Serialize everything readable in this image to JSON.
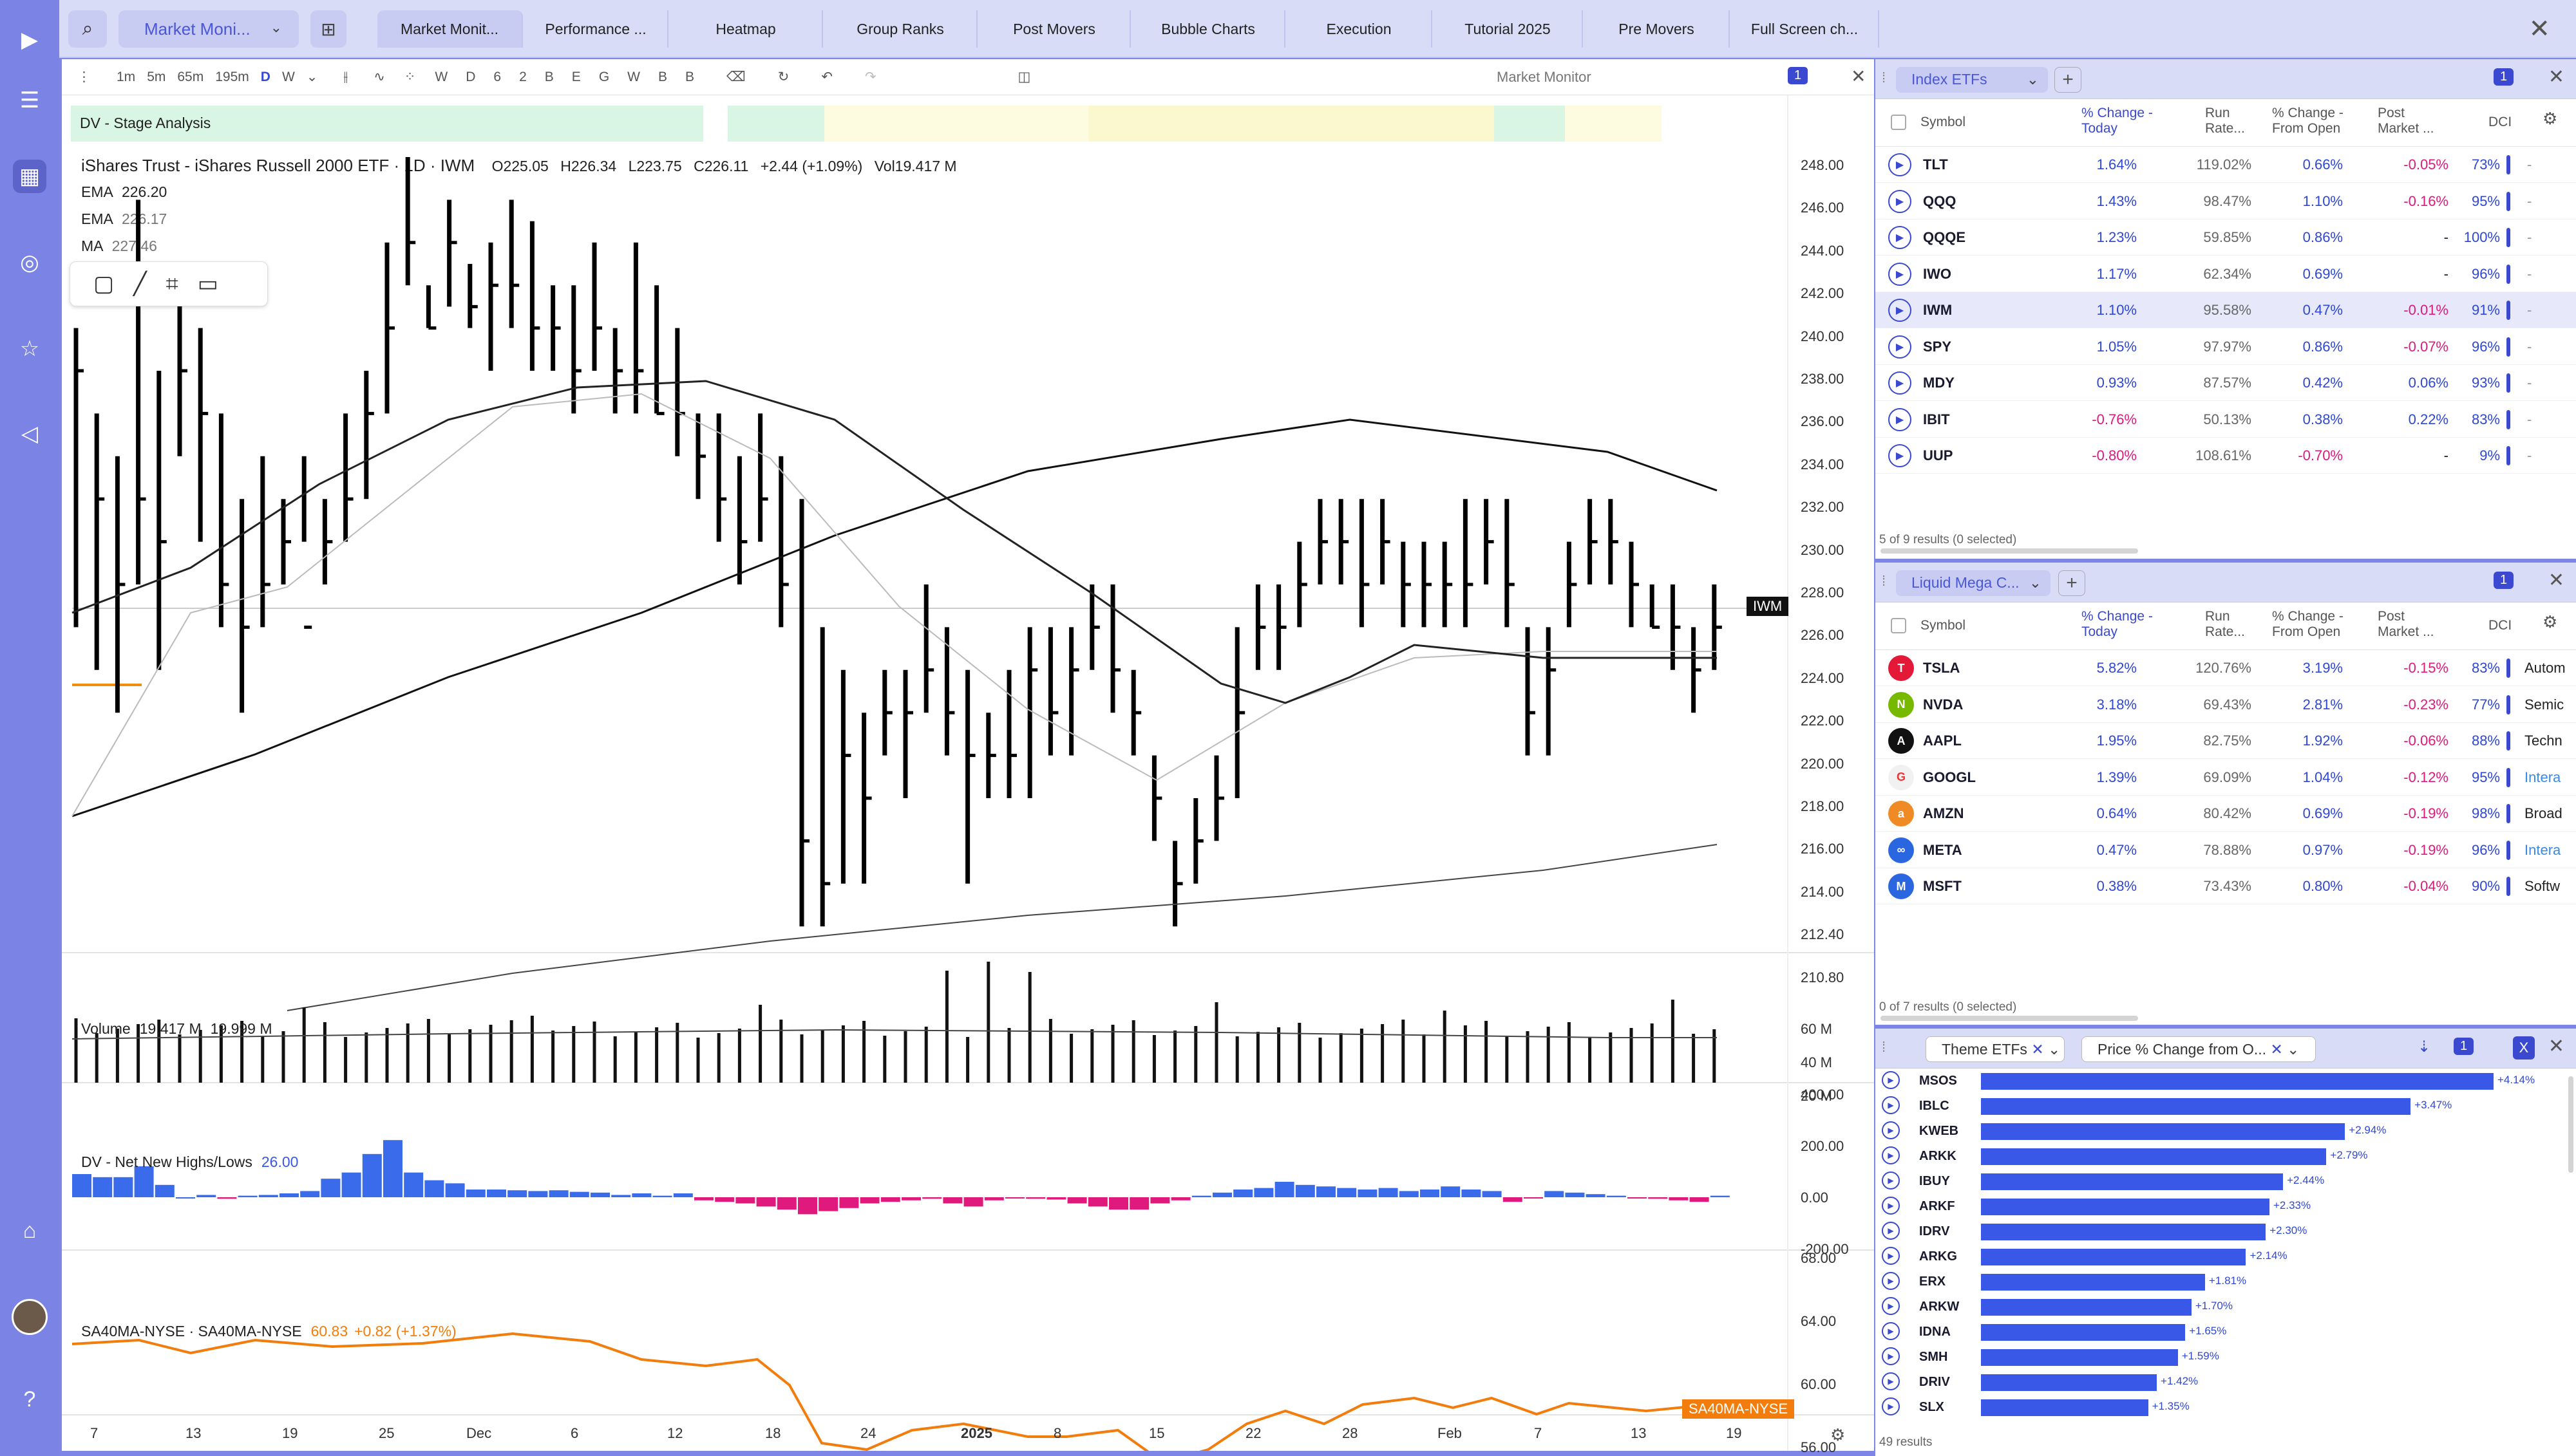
{
  "sidebar": {
    "icons": [
      "logo-play-icon",
      "menu-icon",
      "dashboard-icon",
      "radar-icon",
      "star-icon",
      "megaphone-icon",
      "graduation-cap-icon",
      "help-icon"
    ]
  },
  "topbar": {
    "workspace": "Market Moni...",
    "tabs": [
      "Market Monit...",
      "Performance ...",
      "Heatmap",
      "Group Ranks",
      "Post Movers",
      "Bubble Charts",
      "Execution",
      "Tutorial 2025",
      "Pre Movers",
      "Full Screen ch..."
    ]
  },
  "chart": {
    "toolbar": {
      "intervals": [
        "1m",
        "5m",
        "65m",
        "195m",
        "D",
        "W"
      ],
      "letters": [
        "W",
        "D",
        "6",
        "2",
        "B",
        "E",
        "G",
        "W",
        "B",
        "B"
      ],
      "layout_name": "Market Monitor",
      "badge": "1"
    },
    "stage_label": "DV - Stage Analysis",
    "title": "iShares Trust - iShares Russell 2000 ETF · 1D · IWM",
    "ohlc": {
      "O": "O225.05",
      "H": "H226.34",
      "L": "L223.75",
      "C": "C226.11",
      "chg": "+2.44 (+1.09%)",
      "vol": "Vol19.417 M"
    },
    "indicators": [
      {
        "name": "EMA",
        "value": "226.20"
      },
      {
        "name": "EMA",
        "value": "226.17"
      },
      {
        "name": "MA",
        "value": "227.46"
      }
    ],
    "price_ticks": [
      "248.00",
      "246.00",
      "244.00",
      "242.00",
      "240.00",
      "238.00",
      "236.00",
      "234.00",
      "232.00",
      "230.00",
      "228.00",
      "226.00",
      "224.00",
      "222.00",
      "220.00",
      "218.00",
      "216.00",
      "214.00",
      "212.40",
      "210.80"
    ],
    "price_tag": "IWM",
    "volume": {
      "label": "Volume",
      "v1": "19.417 M",
      "v2": "19.999 M",
      "ticks": [
        "60 M",
        "40 M",
        "20 M"
      ]
    },
    "nnh": {
      "label": "DV - Net New Highs/Lows",
      "value": "26.00",
      "ticks": [
        "400.00",
        "200.00",
        "0.00",
        "-200.00"
      ]
    },
    "sa40": {
      "label": "SA40MA-NYSE · SA40MA-NYSE",
      "value": "60.83",
      "chg": "+0.82 (+1.37%)",
      "ticks": [
        "68.00",
        "64.00",
        "60.00",
        "56.00"
      ],
      "tag": "SA40MA-NYSE"
    },
    "x_ticks": [
      "7",
      "13",
      "19",
      "25",
      "Dec",
      "6",
      "12",
      "18",
      "24",
      "2025",
      "8",
      "15",
      "22",
      "28",
      "Feb",
      "7",
      "13",
      "19"
    ]
  },
  "index_etfs": {
    "title": "Index ETFs",
    "columns": [
      "Symbol",
      "% Change - Today",
      "Run Rate...",
      "% Change - From Open",
      "Post Market ...",
      "DCI"
    ],
    "rows": [
      {
        "sym": "TLT",
        "chg": "1.64%",
        "run": "119.02%",
        "open": "0.66%",
        "post": "-0.05%",
        "dci": "73%",
        "pn": "neg"
      },
      {
        "sym": "QQQ",
        "chg": "1.43%",
        "run": "98.47%",
        "open": "1.10%",
        "post": "-0.16%",
        "dci": "95%",
        "pn": "neg"
      },
      {
        "sym": "QQQE",
        "chg": "1.23%",
        "run": "59.85%",
        "open": "0.86%",
        "post": "-",
        "dci": "100%",
        "pn": "none"
      },
      {
        "sym": "IWO",
        "chg": "1.17%",
        "run": "62.34%",
        "open": "0.69%",
        "post": "-",
        "dci": "96%",
        "pn": "none"
      },
      {
        "sym": "IWM",
        "chg": "1.10%",
        "run": "95.58%",
        "open": "0.47%",
        "post": "-0.01%",
        "dci": "91%",
        "pn": "neg"
      },
      {
        "sym": "SPY",
        "chg": "1.05%",
        "run": "97.97%",
        "open": "0.86%",
        "post": "-0.07%",
        "dci": "96%",
        "pn": "neg"
      },
      {
        "sym": "MDY",
        "chg": "0.93%",
        "run": "87.57%",
        "open": "0.42%",
        "post": "0.06%",
        "dci": "93%",
        "pn": "pos"
      },
      {
        "sym": "IBIT",
        "chg": "-0.76%",
        "run": "50.13%",
        "open": "0.38%",
        "post": "0.22%",
        "dci": "83%",
        "pn": "pos"
      },
      {
        "sym": "UUP",
        "chg": "-0.80%",
        "run": "108.61%",
        "open": "-0.70%",
        "post": "-",
        "dci": "9%",
        "pn": "none"
      }
    ],
    "footer": "5 of 9 results (0 selected)"
  },
  "mega_caps": {
    "title": "Liquid Mega C...",
    "rows": [
      {
        "sym": "TSLA",
        "chg": "5.82%",
        "run": "120.76%",
        "open": "3.19%",
        "post": "-0.15%",
        "dci": "83%",
        "sector": "Autom",
        "logo": "T",
        "color": "#e31937"
      },
      {
        "sym": "NVDA",
        "chg": "3.18%",
        "run": "69.43%",
        "open": "2.81%",
        "post": "-0.23%",
        "dci": "77%",
        "sector": "Semic",
        "logo": "N",
        "color": "#76b900"
      },
      {
        "sym": "AAPL",
        "chg": "1.95%",
        "run": "82.75%",
        "open": "1.92%",
        "post": "-0.06%",
        "dci": "88%",
        "sector": "Techn",
        "logo": "A",
        "color": "#111111"
      },
      {
        "sym": "GOOGL",
        "chg": "1.39%",
        "run": "69.09%",
        "open": "1.04%",
        "post": "-0.12%",
        "dci": "95%",
        "sector": "Intera",
        "logo": "G",
        "color": "#f1f1f1"
      },
      {
        "sym": "AMZN",
        "chg": "0.64%",
        "run": "80.42%",
        "open": "0.69%",
        "post": "-0.19%",
        "dci": "98%",
        "sector": "Broad",
        "logo": "a",
        "color": "#f08a24"
      },
      {
        "sym": "META",
        "chg": "0.47%",
        "run": "78.88%",
        "open": "0.97%",
        "post": "-0.19%",
        "dci": "96%",
        "sector": "Intera",
        "logo": "∞",
        "color": "#2a66e0"
      },
      {
        "sym": "MSFT",
        "chg": "0.38%",
        "run": "73.43%",
        "open": "0.80%",
        "post": "-0.04%",
        "dci": "90%",
        "sector": "Softw",
        "logo": "M",
        "color": "#2a66e0"
      }
    ],
    "footer": "0 of 7 results (0 selected)"
  },
  "theme": {
    "filter1": "Theme ETFs",
    "filter2": "Price % Change from O...",
    "chart_data": {
      "type": "bar",
      "categories": [
        "MSOS",
        "IBLC",
        "KWEB",
        "ARKK",
        "IBUY",
        "ARKF",
        "IDRV",
        "ARKG",
        "ERX",
        "ARKW",
        "IDNA",
        "SMH",
        "DRIV",
        "SLX"
      ],
      "values": [
        4.14,
        3.47,
        2.94,
        2.79,
        2.44,
        2.33,
        2.3,
        2.14,
        1.81,
        1.7,
        1.65,
        1.59,
        1.42,
        1.35
      ],
      "labels": [
        "+4.14%",
        "+3.47%",
        "+2.94%",
        "+2.79%",
        "+2.44%",
        "+2.33%",
        "+2.30%",
        "+2.14%",
        "+1.81%",
        "+1.70%",
        "+1.65%",
        "+1.59%",
        "+1.42%",
        "+1.35%"
      ]
    },
    "footer": "49 results"
  }
}
